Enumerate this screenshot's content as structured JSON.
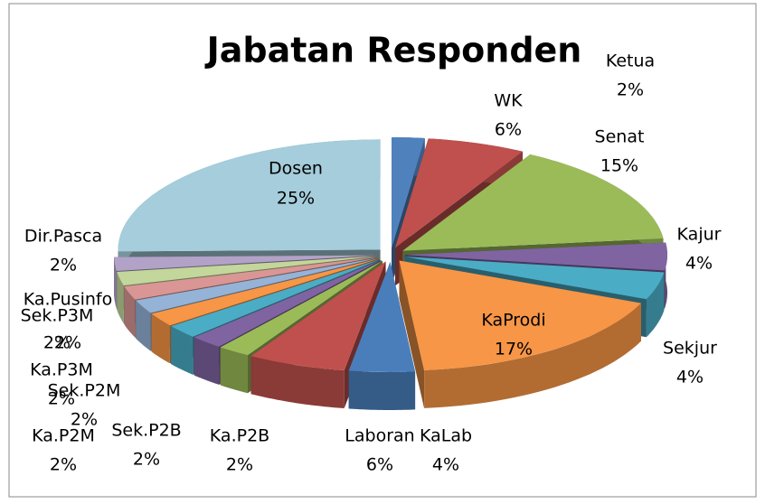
{
  "chart_data": {
    "type": "pie",
    "title": "Jabatan Responden",
    "categories": [
      "Ketua",
      "WK",
      "Senat",
      "Kajur",
      "Sekjur",
      "KaProdi",
      "KaLab",
      "Laboran",
      "Ka.P2B",
      "Sek.P2B",
      "Ka.P2M",
      "Sek.P2M",
      "Ka.P3M",
      "Sek.P3M",
      "Ka.Pusinfo",
      "Dir.Pasca",
      "Dosen"
    ],
    "values": [
      2,
      6,
      15,
      4,
      4,
      17,
      4,
      6,
      2,
      2,
      2,
      2,
      2,
      2,
      2,
      2,
      25
    ],
    "value_labels": [
      "2%",
      "6%",
      "15%",
      "4%",
      "4%",
      "17%",
      "4%",
      "6%",
      "2%",
      "2%",
      "2%",
      "2%",
      "2%",
      "2%",
      "2%",
      "2%",
      "25%"
    ],
    "colors": [
      "#4f81bd",
      "#c0504d",
      "#9bbb59",
      "#8064a2",
      "#4bacc6",
      "#f79646",
      "#4a7ebb",
      "#c0504d",
      "#9bbb59",
      "#8064a2",
      "#4bacc6",
      "#f79646",
      "#95b3d7",
      "#d99694",
      "#c3d69b",
      "#b3a2c7",
      "#a5cddb"
    ]
  }
}
